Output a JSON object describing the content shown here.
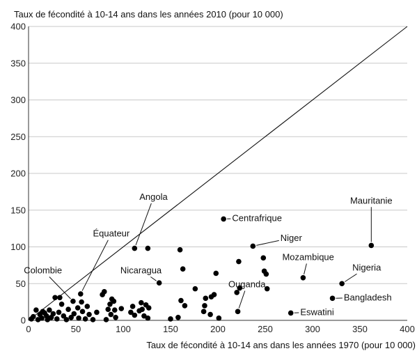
{
  "chart_data": {
    "type": "scatter",
    "title": "",
    "ylabel": "Taux de fécondité à 10-14 ans dans les années 2010 (pour 10 000)",
    "xlabel": "Taux de fécondité à 10-14 ans dans les années 1970 (pour 10 000)",
    "xlim": [
      0,
      400
    ],
    "ylim": [
      0,
      400
    ],
    "xticks": [
      0,
      50,
      100,
      150,
      200,
      250,
      300,
      350,
      400
    ],
    "yticks": [
      0,
      50,
      100,
      150,
      200,
      250,
      300,
      350,
      400
    ],
    "grid": "horizontal",
    "reference_line": {
      "from": [
        0,
        0
      ],
      "to": [
        400,
        400
      ]
    },
    "points": [
      {
        "x": 8,
        "y": 14
      },
      {
        "x": 5,
        "y": 5
      },
      {
        "x": 3,
        "y": 2
      },
      {
        "x": 10,
        "y": 1
      },
      {
        "x": 12,
        "y": 8
      },
      {
        "x": 14,
        "y": 3
      },
      {
        "x": 15,
        "y": 12
      },
      {
        "x": 17,
        "y": 10
      },
      {
        "x": 19,
        "y": 6
      },
      {
        "x": 20,
        "y": 1
      },
      {
        "x": 22,
        "y": 14
      },
      {
        "x": 24,
        "y": 4
      },
      {
        "x": 26,
        "y": 9
      },
      {
        "x": 28,
        "y": 31
      },
      {
        "x": 30,
        "y": 2
      },
      {
        "x": 32,
        "y": 11
      },
      {
        "x": 33,
        "y": 31
      },
      {
        "x": 35,
        "y": 22
      },
      {
        "x": 37,
        "y": 6
      },
      {
        "x": 40,
        "y": 1
      },
      {
        "x": 42,
        "y": 15
      },
      {
        "x": 45,
        "y": 4
      },
      {
        "x": 47,
        "y": 26
      },
      {
        "x": 48,
        "y": 9
      },
      {
        "x": 52,
        "y": 17
      },
      {
        "x": 53,
        "y": 3
      },
      {
        "x": 55,
        "y": 36
      },
      {
        "x": 56,
        "y": 25
      },
      {
        "x": 57,
        "y": 12
      },
      {
        "x": 60,
        "y": 2
      },
      {
        "x": 62,
        "y": 19
      },
      {
        "x": 64,
        "y": 8
      },
      {
        "x": 68,
        "y": 1
      },
      {
        "x": 72,
        "y": 11
      },
      {
        "x": 78,
        "y": 35
      },
      {
        "x": 80,
        "y": 39
      },
      {
        "x": 82,
        "y": 1
      },
      {
        "x": 84,
        "y": 15
      },
      {
        "x": 86,
        "y": 22
      },
      {
        "x": 87,
        "y": 8
      },
      {
        "x": 88,
        "y": 29
      },
      {
        "x": 90,
        "y": 26
      },
      {
        "x": 91,
        "y": 14
      },
      {
        "x": 92,
        "y": 4
      },
      {
        "x": 98,
        "y": 16
      },
      {
        "x": 108,
        "y": 11
      },
      {
        "x": 110,
        "y": 19
      },
      {
        "x": 112,
        "y": 7
      },
      {
        "x": 117,
        "y": 13
      },
      {
        "x": 119,
        "y": 24
      },
      {
        "x": 120,
        "y": 15
      },
      {
        "x": 122,
        "y": 6
      },
      {
        "x": 124,
        "y": 21
      },
      {
        "x": 126,
        "y": 3
      },
      {
        "x": 127,
        "y": 17
      },
      {
        "x": 112,
        "y": 98
      },
      {
        "x": 126,
        "y": 98
      },
      {
        "x": 138,
        "y": 51
      },
      {
        "x": 150,
        "y": 2
      },
      {
        "x": 158,
        "y": 4
      },
      {
        "x": 160,
        "y": 96
      },
      {
        "x": 161,
        "y": 27
      },
      {
        "x": 163,
        "y": 70
      },
      {
        "x": 165,
        "y": 20
      },
      {
        "x": 176,
        "y": 43
      },
      {
        "x": 185,
        "y": 12
      },
      {
        "x": 186,
        "y": 20
      },
      {
        "x": 187,
        "y": 30
      },
      {
        "x": 192,
        "y": 8
      },
      {
        "x": 193,
        "y": 32
      },
      {
        "x": 196,
        "y": 35
      },
      {
        "x": 198,
        "y": 64
      },
      {
        "x": 201,
        "y": 3
      },
      {
        "x": 206,
        "y": 138
      },
      {
        "x": 220,
        "y": 38
      },
      {
        "x": 221,
        "y": 12
      },
      {
        "x": 222,
        "y": 80
      },
      {
        "x": 223,
        "y": 44
      },
      {
        "x": 237,
        "y": 101
      },
      {
        "x": 248,
        "y": 85
      },
      {
        "x": 249,
        "y": 67
      },
      {
        "x": 251,
        "y": 63
      },
      {
        "x": 252,
        "y": 43
      },
      {
        "x": 277,
        "y": 10
      },
      {
        "x": 290,
        "y": 58
      },
      {
        "x": 321,
        "y": 30
      },
      {
        "x": 331,
        "y": 50
      },
      {
        "x": 362,
        "y": 102
      }
    ],
    "annotations": [
      {
        "text": "Angola",
        "x": 112,
        "y": 98,
        "lx": 132,
        "ly": 164,
        "anchor": "middle"
      },
      {
        "text": "Équateur",
        "x": 55,
        "y": 36,
        "lx": 68,
        "ly": 114,
        "anchor": "start"
      },
      {
        "text": "Colombie",
        "x": 47,
        "y": 26,
        "lx": -5,
        "ly": 64,
        "anchor": "start"
      },
      {
        "text": "Nicaragua",
        "x": 138,
        "y": 51,
        "lx": 97,
        "ly": 64,
        "anchor": "start"
      },
      {
        "text": "Centrafrique",
        "x": 206,
        "y": 138,
        "lx": 215,
        "ly": 135,
        "anchor": "start"
      },
      {
        "text": "Niger",
        "x": 237,
        "y": 101,
        "lx": 266,
        "ly": 108,
        "anchor": "start"
      },
      {
        "text": "Mozambique",
        "x": 290,
        "y": 58,
        "lx": 268,
        "ly": 82,
        "anchor": "start"
      },
      {
        "text": "Ouganda",
        "x": 221,
        "y": 12,
        "lx": 211,
        "ly": 45,
        "anchor": "start"
      },
      {
        "text": "Eswatini",
        "x": 277,
        "y": 10,
        "lx": 287,
        "ly": 7,
        "anchor": "start"
      },
      {
        "text": "Mauritanie",
        "x": 362,
        "y": 102,
        "lx": 362,
        "ly": 159,
        "anchor": "middle"
      },
      {
        "text": "Nigeria",
        "x": 331,
        "y": 50,
        "lx": 342,
        "ly": 68,
        "anchor": "start"
      },
      {
        "text": "Bangladesh",
        "x": 321,
        "y": 30,
        "lx": 333,
        "ly": 27,
        "anchor": "start"
      }
    ]
  }
}
